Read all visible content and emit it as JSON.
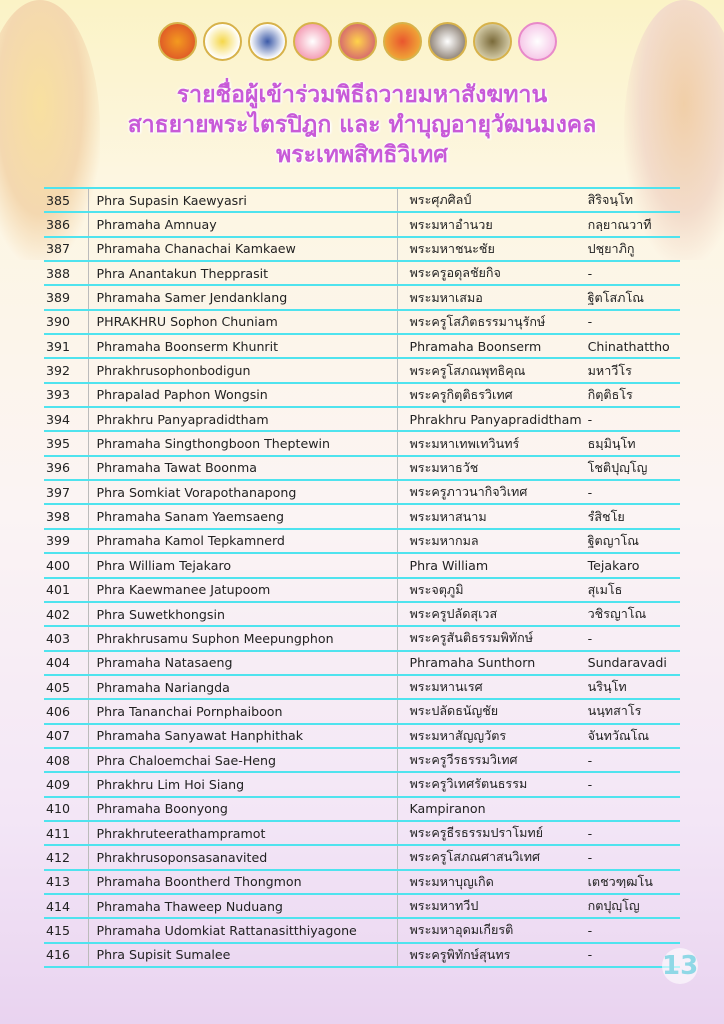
{
  "header": {
    "title_lines": [
      "รายชื่อผู้เข้าร่วมพิธีถวายมหาสังฆทาน",
      "สาธยายพระไตรปิฎก และ ทำบุญอายุวัฒนมงคล",
      "พระเทพสิทธิวิเทศ"
    ]
  },
  "colors": {
    "title": "#c85ad8",
    "row_line": "#4fe3ee"
  },
  "rows": [
    [
      "385",
      "Phra Supasin Kaewyasri",
      "พระศุภศิลป์",
      "สิริจนฺโท"
    ],
    [
      "386",
      "Phramaha Amnuay",
      "พระมหาอำนวย",
      "กลฺยาณวาที"
    ],
    [
      "387",
      "Phramaha Chanachai Kamkaew",
      "พระมหาชนะชัย",
      "ปชฺยาภิกู"
    ],
    [
      "388",
      "Phra Anantakun Thepprasit",
      "พระครูอดุลชัยกิจ",
      "-"
    ],
    [
      "389",
      "Phramaha Samer Jendanklang",
      "พระมหาเสมอ",
      "ฐิตโสภโณ"
    ],
    [
      "390",
      "PHRAKHRU Sophon Chuniam",
      "พระครูโสภิตธรรมานุรักษ์",
      "-"
    ],
    [
      "391",
      "Phramaha Boonserm Khunrit",
      "Phramaha Boonserm",
      "Chinathattho"
    ],
    [
      "392",
      "Phrakhrusophonbodigun",
      "พระครูโสภณพุทธิคุณ",
      "มหาวีโร"
    ],
    [
      "393",
      "Phrapalad Paphon Wongsin",
      "พระครูกิตฺติธรวิเทศ",
      "กิตฺติธโร"
    ],
    [
      "394",
      "Phrakhru Panyapradidtham",
      "Phrakhru Panyapradidtham",
      "-"
    ],
    [
      "395",
      "Phramaha Singthongboon Theptewin",
      "พระมหาเทพเทวินทร์",
      "ธมฺมินฺโท"
    ],
    [
      "396",
      "Phramaha Tawat Boonma",
      "พระมหาธวัช",
      "โชติปุญฺโญ"
    ],
    [
      "397",
      "Phra Somkiat Vorapothanapong",
      "พระครูภาวนากิจวิเทศ",
      "-"
    ],
    [
      "398",
      "Phramaha Sanam Yaemsaeng",
      "พระมหาสนาม",
      "รํสิชโย"
    ],
    [
      "399",
      "Phramaha Kamol Tepkamnerd",
      "พระมหากมล",
      "ฐิตญาโณ"
    ],
    [
      "400",
      "Phra William Tejakaro",
      "Phra William",
      "Tejakaro"
    ],
    [
      "401",
      "Phra Kaewmanee Jatupoom",
      "พระจตุภูมิ",
      "สุเมโธ"
    ],
    [
      "402",
      "Phra Suwetkhongsin",
      "พระครูปลัดสุเวส",
      "วชิรญาโณ"
    ],
    [
      "403",
      "Phrakhrusamu Suphon Meepungphon",
      "พระครูสันติธรรมพิทักษ์",
      "-"
    ],
    [
      "404",
      "Phramaha Natasaeng",
      "Phramaha Sunthorn",
      "Sundaravadi"
    ],
    [
      "405",
      "Phramaha Nariangda",
      "พระมหานเรศ",
      "นรินฺโท"
    ],
    [
      "406",
      "Phra Tananchai Pornphaiboon",
      "พระปลัดธนัญชัย",
      "นนฺทสาโร"
    ],
    [
      "407",
      "Phramaha Sanyawat Hanphithak",
      "พระมหาสัญญวัตร",
      "จันทวัณโณ"
    ],
    [
      "408",
      "Phra Chaloemchai Sae-Heng",
      "พระครูวีรธรรมวิเทศ",
      "-"
    ],
    [
      "409",
      "Phrakhru Lim Hoi Siang",
      "พระครูวิเทศรัตนธรรม",
      "-"
    ],
    [
      "410",
      "Phramaha Boonyong",
      "Kampiranon",
      ""
    ],
    [
      "411",
      "Phrakhruteerathampramot",
      "พระครูธีรธรรมปราโมทย์",
      "-"
    ],
    [
      "412",
      "Phrakhrusoponsasanavited",
      "พระครูโสภณศาสนวิเทศ",
      "-"
    ],
    [
      "413",
      "Phramaha Boontherd Thongmon",
      "พระมหาบุญเกิด",
      "เตชวฑฺฒโน"
    ],
    [
      "414",
      "Phramaha Thaweep Nuduang",
      "พระมหาทวีป",
      "กตปุญฺโญ"
    ],
    [
      "415",
      "Phramaha Udomkiat Rattanasitthiyagone",
      "พระมหาอุดมเกียรติ",
      "-"
    ],
    [
      "416",
      "Phra Supisit Sumalee",
      "พระครูพิทักษ์สุนทร",
      "-"
    ]
  ],
  "footer": {
    "page_number": "13"
  }
}
